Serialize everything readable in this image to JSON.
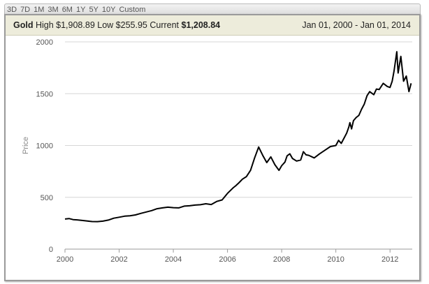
{
  "range_buttons": [
    "3D",
    "7D",
    "1M",
    "3M",
    "6M",
    "1Y",
    "5Y",
    "10Y",
    "Custom"
  ],
  "header": {
    "name": "Gold",
    "high_label": "High",
    "high_value": "$1,908.89",
    "low_label": "Low",
    "low_value": "$255.95",
    "current_label": "Current",
    "current_value": "$1,208.84",
    "date_range": "Jan 01, 2000 - Jan 01, 2014"
  },
  "colors": {
    "line": "#000000",
    "grid": "#d6d6d6",
    "axis": "#9a9a9a",
    "text": "#555555",
    "header_bg": "#edecdb"
  },
  "chart_data": {
    "type": "line",
    "title": "",
    "xlabel": "",
    "ylabel": "Price",
    "xlim": [
      2000,
      2012.82
    ],
    "ylim": [
      0,
      2000
    ],
    "x_ticks": [
      2000,
      2002,
      2004,
      2006,
      2008,
      2010,
      2012
    ],
    "y_ticks": [
      0,
      500,
      1000,
      1500,
      2000
    ],
    "grid": "horizontal",
    "series": [
      {
        "x": [
          2000.0,
          2000.15,
          2000.3,
          2000.45,
          2000.6,
          2000.8,
          2001.0,
          2001.2,
          2001.4,
          2001.6,
          2001.8,
          2002.0,
          2002.2,
          2002.4,
          2002.6,
          2002.8,
          2003.0,
          2003.2,
          2003.4,
          2003.6,
          2003.8,
          2004.0,
          2004.2,
          2004.4,
          2004.6,
          2004.8,
          2005.0,
          2005.2,
          2005.4,
          2005.6,
          2005.8,
          2006.0,
          2006.2,
          2006.3,
          2006.42,
          2006.55,
          2006.7,
          2006.85,
          2007.0,
          2007.15,
          2007.3,
          2007.45,
          2007.6,
          2007.75,
          2007.9,
          2008.0,
          2008.12,
          2008.2,
          2008.3,
          2008.4,
          2008.55,
          2008.7,
          2008.8,
          2008.9,
          2009.0,
          2009.2,
          2009.4,
          2009.6,
          2009.8,
          2010.0,
          2010.1,
          2010.2,
          2010.3,
          2010.4,
          2010.48,
          2010.52,
          2010.58,
          2010.65,
          2010.75,
          2010.85,
          2010.95,
          2011.05,
          2011.15,
          2011.25,
          2011.4,
          2011.5,
          2011.6,
          2011.75,
          2011.9,
          2012.0,
          2012.08,
          2012.15,
          2012.25,
          2012.3,
          2012.4,
          2012.5,
          2012.6,
          2012.7,
          2012.78
        ],
        "values": [
          290,
          295,
          285,
          282,
          278,
          272,
          266,
          265,
          270,
          280,
          298,
          308,
          318,
          322,
          330,
          345,
          358,
          372,
          390,
          398,
          405,
          400,
          398,
          415,
          418,
          425,
          428,
          438,
          430,
          460,
          475,
          538,
          590,
          610,
          640,
          675,
          700,
          760,
          880,
          985,
          905,
          835,
          890,
          815,
          760,
          805,
          840,
          900,
          920,
          875,
          850,
          860,
          940,
          910,
          905,
          880,
          920,
          955,
          990,
          1000,
          1050,
          1020,
          1070,
          1120,
          1180,
          1220,
          1160,
          1240,
          1270,
          1290,
          1350,
          1400,
          1480,
          1520,
          1490,
          1545,
          1540,
          1600,
          1570,
          1560,
          1620,
          1720,
          1905,
          1700,
          1860,
          1620,
          1670,
          1520,
          1600
        ]
      }
    ]
  }
}
